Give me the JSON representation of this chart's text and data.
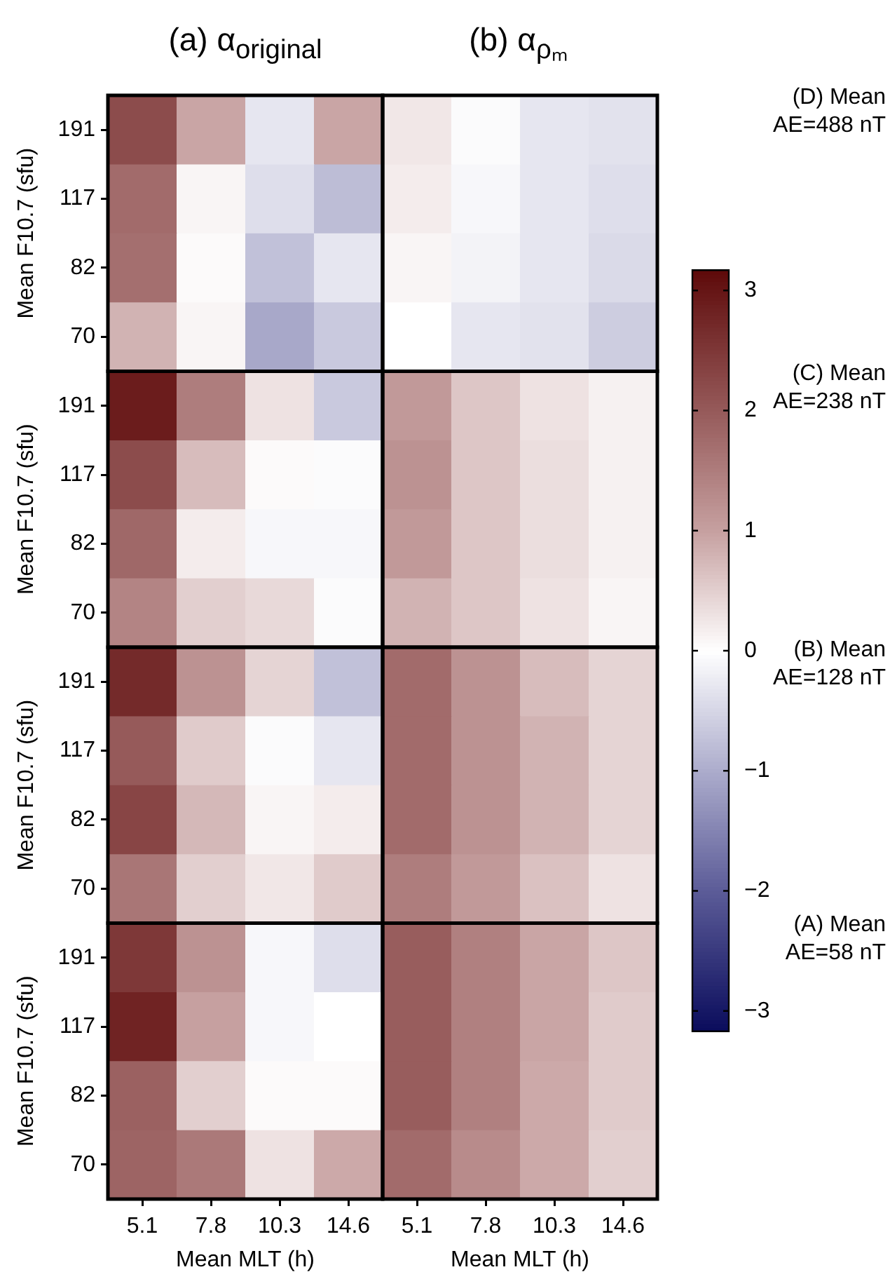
{
  "chart_data": {
    "type": "heatmap",
    "xlabel": "Mean MLT (h)",
    "ylabel": "Mean F10.7 (sfu)",
    "categories": [
      "5.1",
      "7.8",
      "10.3",
      "14.6",
      "5.1",
      "7.8",
      "10.3",
      "14.6"
    ],
    "y_categories": [
      "191",
      "117",
      "82",
      "70",
      "191",
      "117",
      "82",
      "70",
      "191",
      "117",
      "82",
      "70",
      "191",
      "117",
      "82",
      "70"
    ],
    "clim": [
      -3.17,
      3.17
    ],
    "cticks": [
      {
        "value": -3,
        "label": "−3"
      },
      {
        "value": -2,
        "label": "−2"
      },
      {
        "value": -1,
        "label": "−1"
      },
      0,
      1,
      2,
      3
    ],
    "annotations": [
      "(a) α$_{original}$",
      "(b) α$_{ρₘ}$",
      "(D) Mean AE=488 nT",
      "(C) Mean AE=238 nT",
      "(B) Mean AE=128 nT",
      "(A) Mean AE=58 nT"
    ],
    "cells": [
      [
        2.2,
        0.95,
        -0.3,
        0.95,
        0.25,
        -0.05,
        -0.3,
        -0.35
      ],
      [
        1.75,
        0.1,
        -0.4,
        -0.8,
        0.2,
        -0.1,
        -0.3,
        -0.4
      ],
      [
        1.7,
        0.05,
        -0.75,
        -0.3,
        0.1,
        -0.15,
        -0.3,
        -0.45
      ],
      [
        0.8,
        0.1,
        -1.05,
        -0.65,
        0.0,
        -0.3,
        -0.35,
        -0.6
      ],
      [
        2.9,
        1.5,
        0.3,
        -0.65,
        1.1,
        0.6,
        0.3,
        0.15
      ],
      [
        2.2,
        0.7,
        0.05,
        -0.05,
        1.2,
        0.6,
        0.35,
        0.15
      ],
      [
        1.8,
        0.2,
        -0.1,
        -0.1,
        1.1,
        0.6,
        0.35,
        0.15
      ],
      [
        1.4,
        0.5,
        0.4,
        -0.05,
        0.8,
        0.6,
        0.3,
        0.1
      ],
      [
        2.7,
        1.2,
        0.45,
        -0.75,
        1.75,
        1.2,
        0.7,
        0.45
      ],
      [
        2.0,
        0.55,
        -0.05,
        -0.3,
        1.75,
        1.2,
        0.8,
        0.45
      ],
      [
        2.3,
        0.75,
        0.1,
        0.2,
        1.75,
        1.2,
        0.8,
        0.45
      ],
      [
        1.6,
        0.5,
        0.25,
        0.55,
        1.5,
        1.1,
        0.65,
        0.3
      ],
      [
        2.5,
        1.2,
        -0.1,
        -0.4,
        1.95,
        1.45,
        0.95,
        0.6
      ],
      [
        2.8,
        1.0,
        -0.1,
        0.0,
        1.95,
        1.45,
        0.95,
        0.55
      ],
      [
        1.9,
        0.5,
        0.05,
        0.05,
        1.95,
        1.45,
        0.9,
        0.55
      ],
      [
        1.85,
        1.55,
        0.3,
        0.9,
        1.75,
        1.3,
        0.9,
        0.5
      ]
    ]
  }
}
